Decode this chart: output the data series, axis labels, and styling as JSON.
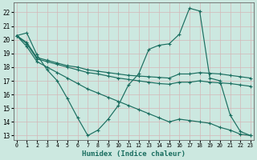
{
  "xlabel": "Humidex (Indice chaleur)",
  "background_color": "#cce8e0",
  "plot_bg_color": "#cce8e0",
  "grid_color": "#b8d0c8",
  "line_color": "#1a6e60",
  "xlim": [
    -0.3,
    23.3
  ],
  "ylim": [
    12.7,
    22.7
  ],
  "yticks": [
    13,
    14,
    15,
    16,
    17,
    18,
    19,
    20,
    21,
    22
  ],
  "xticks": [
    0,
    1,
    2,
    3,
    4,
    5,
    6,
    7,
    8,
    9,
    10,
    11,
    12,
    13,
    14,
    15,
    16,
    17,
    18,
    19,
    20,
    21,
    22,
    23
  ],
  "series": [
    {
      "x": [
        0,
        1,
        2,
        3,
        4,
        5,
        6,
        7,
        8,
        9,
        10,
        11,
        12,
        13,
        14,
        15,
        16,
        17,
        18,
        19,
        20,
        21,
        22,
        23
      ],
      "y": [
        20.3,
        20.5,
        18.9,
        17.8,
        17.0,
        15.7,
        14.3,
        13.0,
        13.4,
        14.2,
        15.2,
        16.7,
        17.5,
        19.3,
        19.6,
        19.7,
        20.4,
        22.3,
        22.1,
        17.2,
        17.0,
        14.5,
        13.3,
        13.0
      ]
    },
    {
      "x": [
        0,
        1,
        2,
        3,
        4,
        5,
        6,
        7,
        8,
        9,
        10,
        11,
        12,
        13,
        14,
        15,
        16,
        17,
        18,
        19,
        20,
        21,
        22,
        23
      ],
      "y": [
        20.3,
        19.8,
        18.7,
        18.5,
        18.3,
        18.1,
        18.0,
        17.8,
        17.7,
        17.6,
        17.5,
        17.4,
        17.35,
        17.3,
        17.25,
        17.2,
        17.5,
        17.5,
        17.6,
        17.55,
        17.5,
        17.4,
        17.3,
        17.2
      ]
    },
    {
      "x": [
        0,
        1,
        2,
        3,
        4,
        5,
        6,
        7,
        8,
        9,
        10,
        11,
        12,
        13,
        14,
        15,
        16,
        17,
        18,
        19,
        20,
        21,
        22,
        23
      ],
      "y": [
        20.3,
        19.7,
        18.6,
        18.4,
        18.2,
        18.0,
        17.8,
        17.6,
        17.5,
        17.35,
        17.2,
        17.1,
        17.0,
        16.9,
        16.8,
        16.75,
        16.9,
        16.9,
        17.0,
        16.9,
        16.85,
        16.8,
        16.7,
        16.6
      ]
    },
    {
      "x": [
        0,
        1,
        2,
        3,
        4,
        5,
        6,
        7,
        8,
        9,
        10,
        11,
        12,
        13,
        14,
        15,
        16,
        17,
        18,
        19,
        20,
        21,
        22,
        23
      ],
      "y": [
        20.3,
        19.5,
        18.4,
        18.0,
        17.6,
        17.2,
        16.8,
        16.4,
        16.1,
        15.8,
        15.5,
        15.2,
        14.9,
        14.6,
        14.3,
        14.0,
        14.2,
        14.1,
        14.0,
        13.9,
        13.6,
        13.4,
        13.1,
        13.0
      ]
    }
  ]
}
